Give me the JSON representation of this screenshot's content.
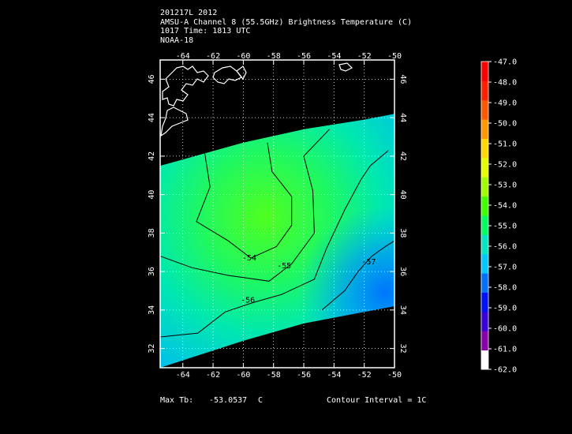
{
  "header": {
    "line1": "201217L 2012",
    "line2": "AMSU-A Channel 8 (55.5GHz) Brightness Temperature (C)",
    "line3": "1017 Time: 1813 UTC",
    "line4": "NOAA-18"
  },
  "footer": {
    "max_label": "Max Tb:",
    "max_value": "-53.0537",
    "max_unit": "C",
    "contour_interval": "Contour Interval = 1C"
  },
  "chart_data": {
    "type": "heatmap",
    "title": "AMSU-A Channel 8 (55.5GHz) Brightness Temperature (C)",
    "xlim": [
      -65.5,
      -50
    ],
    "ylim": [
      31,
      47
    ],
    "x_ticks": [
      -64,
      -62,
      -60,
      -58,
      -56,
      -54,
      -52,
      -50
    ],
    "y_ticks": [
      32,
      34,
      36,
      38,
      40,
      42,
      44,
      46
    ],
    "x_tick_labels": [
      "-64",
      "-62",
      "-60",
      "-58",
      "-56",
      "-54",
      "-52",
      "-50"
    ],
    "y_tick_labels": [
      "32",
      "34",
      "36",
      "38",
      "40",
      "42",
      "44",
      "46"
    ],
    "grid": true,
    "swath_edges": {
      "upper": [
        [
          -65.5,
          41.5
        ],
        [
          -60,
          42.7
        ],
        [
          -56,
          43.4
        ],
        [
          -52,
          43.9
        ],
        [
          -50,
          44.2
        ]
      ],
      "lower": [
        [
          -65.5,
          31
        ],
        [
          -60,
          32.4
        ],
        [
          -56,
          33.3
        ],
        [
          -52,
          33.9
        ],
        [
          -50,
          34.2
        ]
      ]
    },
    "field": {
      "max_center": [
        -59.3,
        39.2
      ],
      "max_value": -53.05,
      "min_region": [
        -51,
        34.8
      ],
      "min_value": -57.6
    },
    "contours": [
      {
        "value": -54,
        "label": "-54",
        "label_at": [
          -59.6,
          36.7
        ],
        "points": [
          [
            -62.6,
            42.4
          ],
          [
            -62.2,
            40.4
          ],
          [
            -63.1,
            38.6
          ],
          [
            -61.0,
            37.6
          ],
          [
            -59.5,
            36.7
          ],
          [
            -57.8,
            37.3
          ],
          [
            -56.8,
            38.4
          ],
          [
            -56.8,
            39.9
          ],
          [
            -58.1,
            41.2
          ],
          [
            -58.4,
            42.7
          ]
        ]
      },
      {
        "value": -55,
        "label": "-55",
        "label_at": [
          -57.3,
          36.3
        ],
        "points": [
          [
            -65.5,
            36.8
          ],
          [
            -63.4,
            36.2
          ],
          [
            -61.0,
            35.8
          ],
          [
            -58.3,
            35.5
          ],
          [
            -56.8,
            36.4
          ],
          [
            -55.3,
            38.0
          ],
          [
            -55.4,
            40.2
          ],
          [
            -56.0,
            42.0
          ],
          [
            -54.3,
            43.4
          ]
        ]
      },
      {
        "value": -56,
        "label": "-56",
        "label_at": [
          -59.7,
          34.5
        ],
        "points": [
          [
            -65.5,
            32.6
          ],
          [
            -63.0,
            32.8
          ],
          [
            -61.2,
            33.9
          ],
          [
            -59.3,
            34.4
          ],
          [
            -57.5,
            34.8
          ],
          [
            -55.3,
            35.6
          ],
          [
            -54.5,
            37.2
          ],
          [
            -53.3,
            39.2
          ],
          [
            -52.2,
            40.8
          ],
          [
            -51.6,
            41.5
          ],
          [
            -50.4,
            42.3
          ]
        ]
      },
      {
        "value": -57,
        "label": "-57",
        "label_at": [
          -51.7,
          36.5
        ],
        "points": [
          [
            -54.8,
            34.0
          ],
          [
            -53.3,
            35.0
          ],
          [
            -52.4,
            36.0
          ],
          [
            -51.5,
            36.8
          ],
          [
            -50.6,
            37.3
          ],
          [
            -50.0,
            37.6
          ]
        ]
      }
    ],
    "colorbar": {
      "ticks": [
        "-47.0",
        "-48.0",
        "-49.0",
        "-50.0",
        "-51.0",
        "-52.0",
        "-53.0",
        "-54.0",
        "-55.0",
        "-56.0",
        "-57.0",
        "-58.0",
        "-59.0",
        "-60.0",
        "-61.0",
        "-62.0"
      ],
      "range": [
        -62,
        -47
      ],
      "colors": [
        "#ffffff",
        "#8a00a8",
        "#3a00d8",
        "#0010ff",
        "#0070ff",
        "#00c8ff",
        "#00e6c0",
        "#00ff60",
        "#40ff00",
        "#a0ff00",
        "#e6ff00",
        "#ffd800",
        "#ff9800",
        "#ff5800",
        "#ff2000",
        "#ff0000"
      ]
    }
  }
}
